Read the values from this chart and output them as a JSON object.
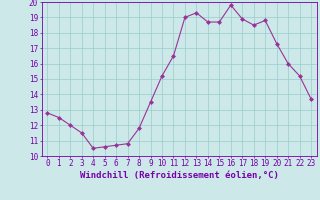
{
  "x": [
    0,
    1,
    2,
    3,
    4,
    5,
    6,
    7,
    8,
    9,
    10,
    11,
    12,
    13,
    14,
    15,
    16,
    17,
    18,
    19,
    20,
    21,
    22,
    23
  ],
  "y": [
    12.8,
    12.5,
    12.0,
    11.5,
    10.5,
    10.6,
    10.7,
    10.8,
    11.8,
    13.5,
    15.2,
    16.5,
    19.0,
    19.3,
    18.7,
    18.7,
    19.8,
    18.9,
    18.5,
    18.8,
    17.3,
    16.0,
    15.2,
    13.7
  ],
  "line_color": "#993399",
  "marker": "D",
  "marker_size": 2,
  "bg_color": "#cce8e8",
  "grid_color": "#99cccc",
  "xlabel": "Windchill (Refroidissement éolien,°C)",
  "ylim": [
    10,
    20
  ],
  "xlim_min": -0.5,
  "xlim_max": 23.5,
  "yticks": [
    10,
    11,
    12,
    13,
    14,
    15,
    16,
    17,
    18,
    19,
    20
  ],
  "xticks": [
    0,
    1,
    2,
    3,
    4,
    5,
    6,
    7,
    8,
    9,
    10,
    11,
    12,
    13,
    14,
    15,
    16,
    17,
    18,
    19,
    20,
    21,
    22,
    23
  ],
  "tick_fontsize": 5.5,
  "xlabel_fontsize": 6.5,
  "tick_color": "#7700aa",
  "spine_color": "#7700aa",
  "line_width": 0.8
}
